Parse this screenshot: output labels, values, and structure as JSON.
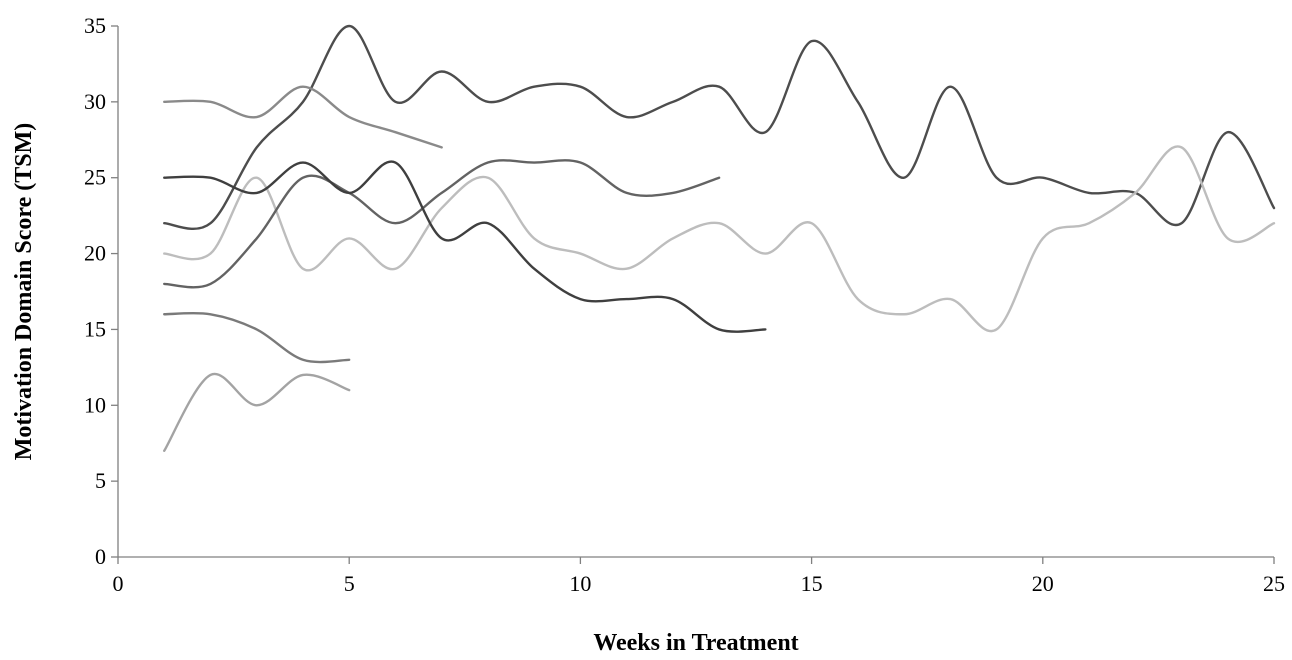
{
  "chart_data": {
    "type": "line",
    "title": "",
    "xlabel": "Weeks in Treatment",
    "ylabel": "Motivation Domain Score (TSM)",
    "xlim": [
      0,
      25
    ],
    "ylim": [
      0,
      35
    ],
    "x_ticks": [
      0,
      5,
      10,
      15,
      20,
      25
    ],
    "y_ticks": [
      0,
      5,
      10,
      15,
      20,
      25,
      30,
      35
    ],
    "grid": false,
    "legend": "none",
    "smooth": true,
    "series": [
      {
        "color": "#4d4d4d",
        "x": [
          1,
          2,
          3,
          4,
          5,
          6,
          7,
          8,
          9,
          10,
          11,
          12,
          13,
          14,
          15,
          16,
          17,
          18,
          19,
          20,
          21,
          22,
          23,
          24,
          25
        ],
        "values": [
          22,
          22,
          27,
          30,
          35,
          30,
          32,
          30,
          31,
          31,
          29,
          30,
          31,
          28,
          34,
          30,
          25,
          31,
          25,
          25,
          24,
          24,
          22,
          28,
          23
        ]
      },
      {
        "color": "#bdbdbd",
        "x": [
          1,
          2,
          3,
          4,
          5,
          6,
          7,
          8,
          9,
          10,
          11,
          12,
          13,
          14,
          15,
          16,
          17,
          18,
          19,
          20,
          21,
          22,
          23,
          24,
          25
        ],
        "values": [
          20,
          20,
          25,
          19,
          21,
          19,
          23,
          25,
          21,
          20,
          19,
          21,
          22,
          20,
          22,
          17,
          16,
          17,
          15,
          21,
          22,
          24,
          27,
          21,
          22
        ]
      },
      {
        "color": "#636363",
        "x": [
          1,
          2,
          3,
          4,
          5,
          6,
          7,
          8,
          9,
          10,
          11,
          12,
          13
        ],
        "values": [
          18,
          18,
          21,
          25,
          24,
          22,
          24,
          26,
          26,
          26,
          24,
          24,
          25
        ]
      },
      {
        "color": "#3f3f3f",
        "x": [
          1,
          2,
          3,
          4,
          5,
          6,
          7,
          8,
          9,
          10,
          11,
          12,
          13,
          14
        ],
        "values": [
          25,
          25,
          24,
          26,
          24,
          26,
          21,
          22,
          19,
          17,
          17,
          17,
          15,
          15
        ]
      },
      {
        "color": "#8a8a8a",
        "x": [
          1,
          2,
          3,
          4,
          5,
          6,
          7
        ],
        "values": [
          30,
          30,
          29,
          31,
          29,
          28,
          27
        ]
      },
      {
        "color": "#7a7a7a",
        "x": [
          1,
          2,
          3,
          4,
          5
        ],
        "values": [
          16,
          16,
          15,
          13,
          13
        ]
      },
      {
        "color": "#a3a3a3",
        "x": [
          1,
          2,
          3,
          4,
          5
        ],
        "values": [
          7,
          12,
          10,
          12,
          11
        ]
      }
    ]
  }
}
